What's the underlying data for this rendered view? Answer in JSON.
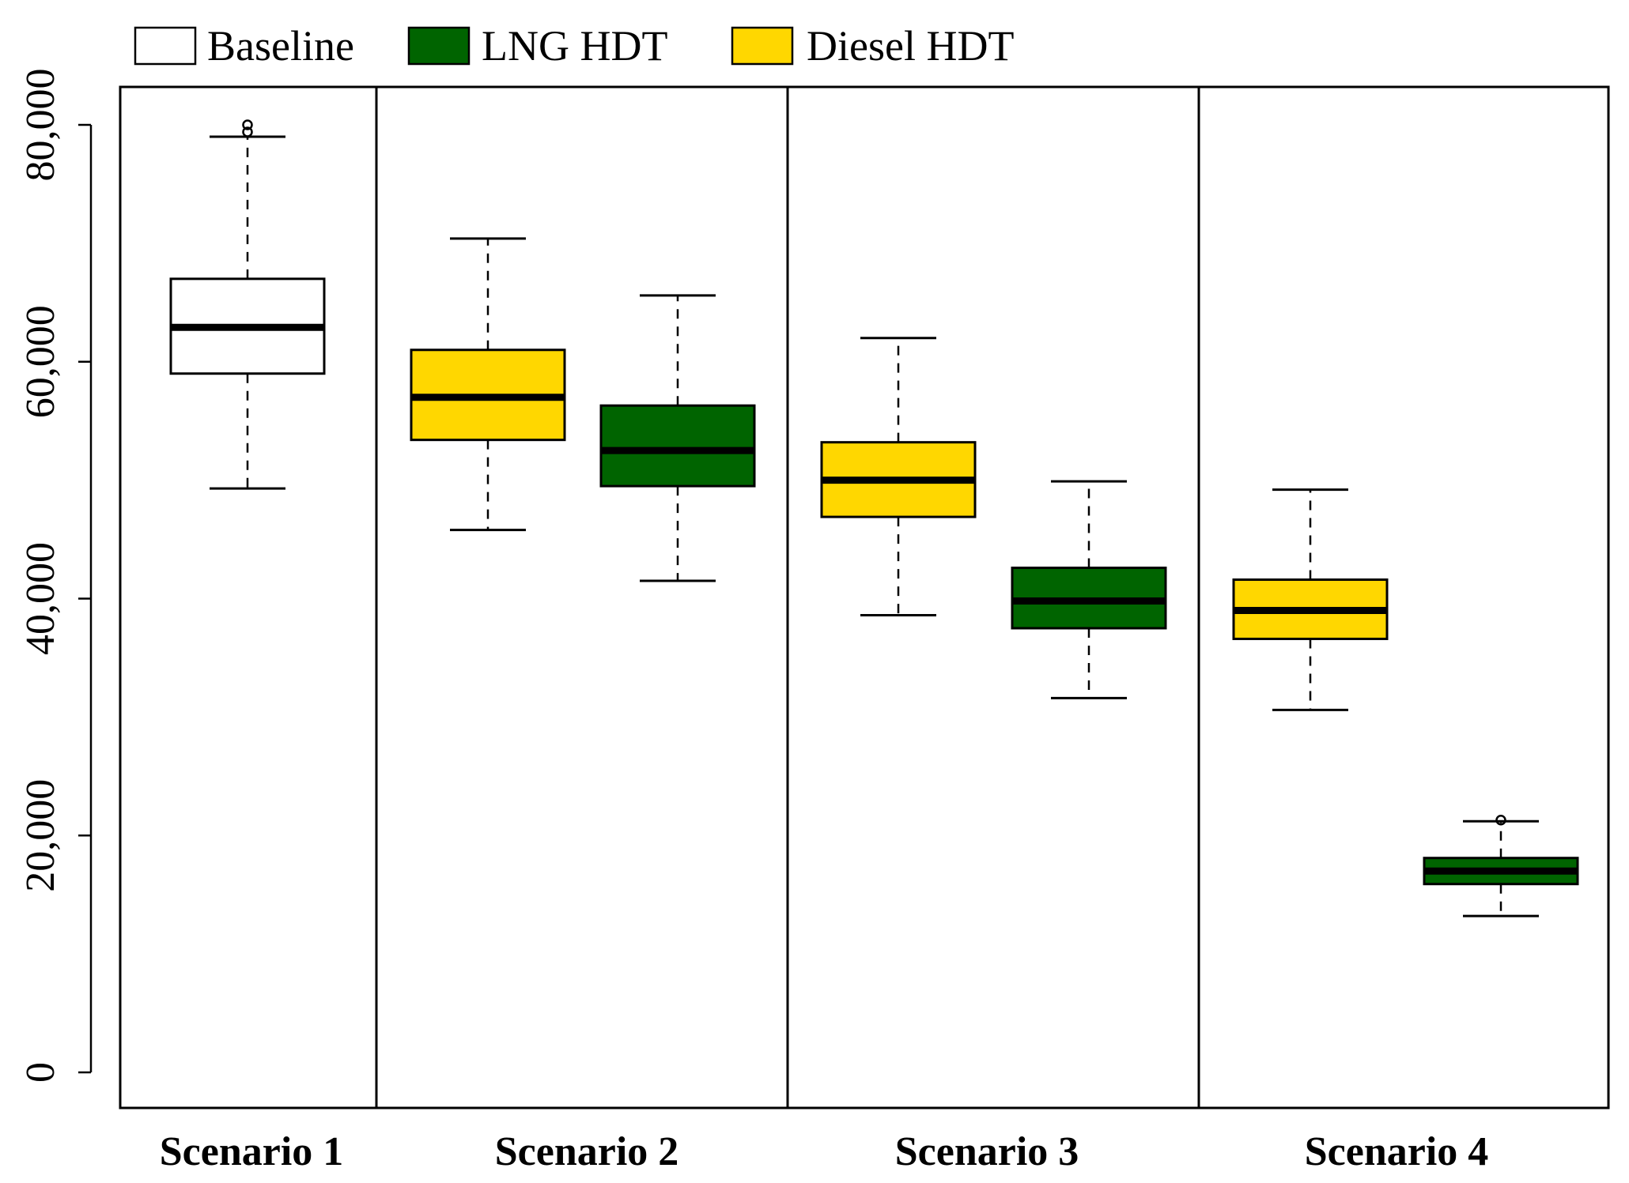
{
  "chart_data": {
    "type": "boxplot",
    "title": "",
    "xlabel": "",
    "ylabel": "",
    "ylim": [
      0,
      86000
    ],
    "y_ticks": [
      0,
      20000,
      40000,
      60000,
      80000
    ],
    "y_tick_labels": [
      "0",
      "20,000",
      "40,000",
      "60,000",
      "80,000"
    ],
    "grid": false,
    "legend_position": "top-left, above plot",
    "legend": [
      {
        "label": "Baseline",
        "color": "#ffffff"
      },
      {
        "label": "LNG HDT",
        "color": "#006400"
      },
      {
        "label": "Diesel HDT",
        "color": "#ffd700"
      }
    ],
    "categories": [
      "Scenario 1",
      "Scenario 2",
      "Scenario 3",
      "Scenario 4"
    ],
    "boxes": [
      {
        "scenario": "Scenario 1",
        "series": "Baseline",
        "color": "#ffffff",
        "whisker_low": 49300,
        "q1": 59000,
        "median": 62900,
        "q3": 67000,
        "whisker_high": 79000,
        "outliers": [
          79400,
          80000
        ]
      },
      {
        "scenario": "Scenario 2",
        "series": "Diesel HDT",
        "color": "#ffd700",
        "whisker_low": 45800,
        "q1": 53400,
        "median": 57000,
        "q3": 61000,
        "whisker_high": 70400,
        "outliers": []
      },
      {
        "scenario": "Scenario 2",
        "series": "LNG HDT",
        "color": "#006400",
        "whisker_low": 41500,
        "q1": 49500,
        "median": 52500,
        "q3": 56300,
        "whisker_high": 65600,
        "outliers": []
      },
      {
        "scenario": "Scenario 3",
        "series": "Diesel HDT",
        "color": "#ffd700",
        "whisker_low": 38600,
        "q1": 46900,
        "median": 50000,
        "q3": 53200,
        "whisker_high": 62000,
        "outliers": []
      },
      {
        "scenario": "Scenario 3",
        "series": "LNG HDT",
        "color": "#006400",
        "whisker_low": 31600,
        "q1": 37500,
        "median": 39800,
        "q3": 42600,
        "whisker_high": 49900,
        "outliers": []
      },
      {
        "scenario": "Scenario 4",
        "series": "Diesel HDT",
        "color": "#ffd700",
        "whisker_low": 30600,
        "q1": 36600,
        "median": 39000,
        "q3": 41600,
        "whisker_high": 49200,
        "outliers": []
      },
      {
        "scenario": "Scenario 4",
        "series": "LNG HDT",
        "color": "#006400",
        "whisker_low": 13200,
        "q1": 15900,
        "median": 17000,
        "q3": 18100,
        "whisker_high": 21200,
        "outliers": [
          21300
        ]
      }
    ]
  }
}
